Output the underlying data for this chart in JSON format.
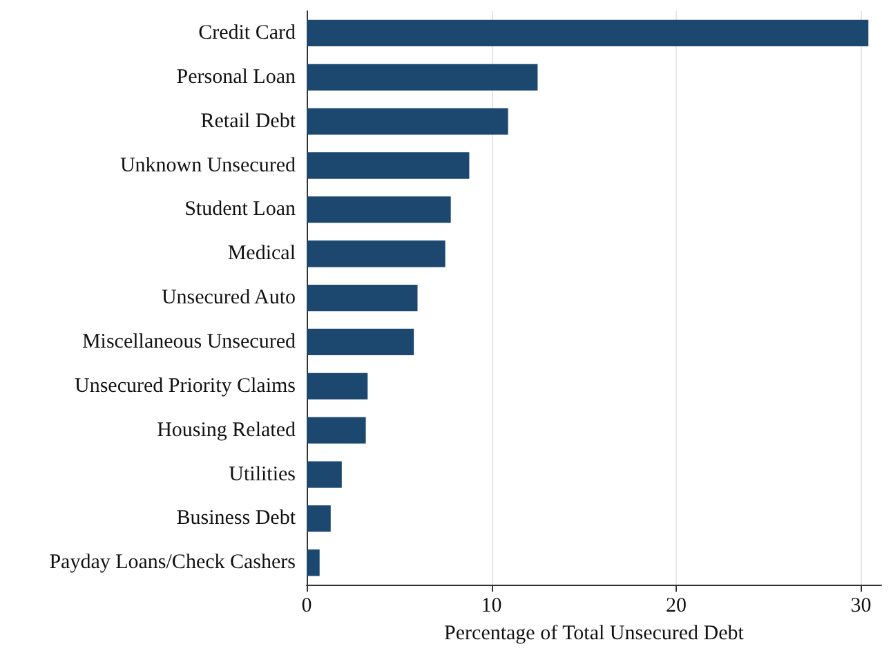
{
  "chart_data": {
    "type": "bar",
    "orientation": "horizontal",
    "xlabel": "Percentage of Total Unsecured Debt",
    "categories": [
      "Credit Card",
      "Personal Loan",
      "Retail Debt",
      "Unknown Unsecured",
      "Student Loan",
      "Medical",
      "Unsecured Auto",
      "Miscellaneous Unsecured",
      "Unsecured Priority Claims",
      "Housing Related",
      "Utilities",
      "Business Debt",
      "Payday Loans/Check Cashers"
    ],
    "values": [
      30.4,
      12.5,
      10.9,
      8.8,
      7.8,
      7.5,
      6.0,
      5.8,
      3.3,
      3.2,
      1.9,
      1.3,
      0.7
    ],
    "color": "#1c4870",
    "xlim": [
      0,
      31.1
    ],
    "xticks": [
      0,
      10,
      20,
      30
    ],
    "grid": "x"
  }
}
